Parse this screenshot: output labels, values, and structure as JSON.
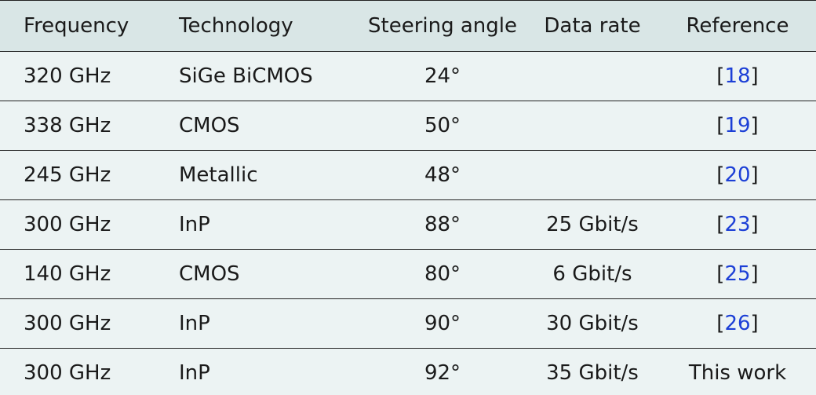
{
  "table": {
    "headers": [
      "Frequency",
      "Technology",
      "Steering angle",
      "Data rate",
      "Reference"
    ],
    "rows": [
      {
        "frequency": "320 GHz",
        "technology": "SiGe BiCMOS",
        "angle": "24°",
        "rate": "",
        "ref_open": "[",
        "ref": "18",
        "ref_close": "]"
      },
      {
        "frequency": "338 GHz",
        "technology": "CMOS",
        "angle": "50°",
        "rate": "",
        "ref_open": "[",
        "ref": "19",
        "ref_close": "]"
      },
      {
        "frequency": "245 GHz",
        "technology": "Metallic",
        "angle": "48°",
        "rate": "",
        "ref_open": "[",
        "ref": "20",
        "ref_close": "]"
      },
      {
        "frequency": "300 GHz",
        "technology": "InP",
        "angle": "88°",
        "rate": "25 Gbit/s",
        "ref_open": "[",
        "ref": "23",
        "ref_close": "]"
      },
      {
        "frequency": "140 GHz",
        "technology": "CMOS",
        "angle": "80°",
        "rate": "6 Gbit/s",
        "ref_open": "[",
        "ref": "25",
        "ref_close": "]"
      },
      {
        "frequency": "300 GHz",
        "technology": "InP",
        "angle": "90°",
        "rate": "30 Gbit/s",
        "ref_open": "[",
        "ref": "26",
        "ref_close": "]"
      },
      {
        "frequency": "300 GHz",
        "technology": "InP",
        "angle": "92°",
        "rate": "35 Gbit/s",
        "ref_open": "",
        "ref": "This work",
        "ref_close": ""
      }
    ]
  },
  "colors": {
    "header_bg": "#d9e6e6",
    "row_bg": "#ecf3f3",
    "link": "#1c3fd6"
  }
}
